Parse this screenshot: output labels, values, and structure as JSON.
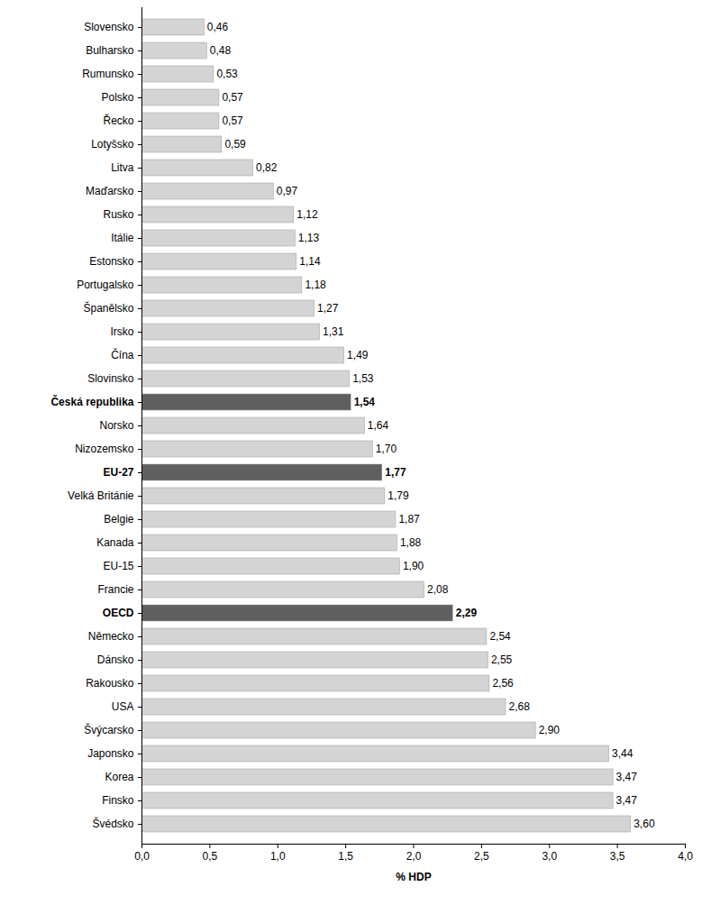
{
  "chart_data": {
    "type": "bar",
    "orientation": "horizontal",
    "xlabel": "% HDP",
    "categories": [
      "Slovensko",
      "Bulharsko",
      "Rumunsko",
      "Polsko",
      "Řecko",
      "Lotyšsko",
      "Litva",
      "Maďarsko",
      "Rusko",
      "Itálie",
      "Estonsko",
      "Portugalsko",
      "Španělsko",
      "Irsko",
      "Čína",
      "Slovinsko",
      "Česká republika",
      "Norsko",
      "Nizozemsko",
      "EU-27",
      "Velká Británie",
      "Belgie",
      "Kanada",
      "EU-15",
      "Francie",
      "OECD",
      "Německo",
      "Dánsko",
      "Rakousko",
      "USA",
      "Švýcarsko",
      "Japonsko",
      "Korea",
      "Finsko",
      "Švédsko"
    ],
    "values": [
      0.46,
      0.48,
      0.53,
      0.57,
      0.57,
      0.59,
      0.82,
      0.97,
      1.12,
      1.13,
      1.14,
      1.18,
      1.27,
      1.31,
      1.49,
      1.53,
      1.54,
      1.64,
      1.7,
      1.77,
      1.79,
      1.87,
      1.88,
      1.9,
      2.08,
      2.29,
      2.54,
      2.55,
      2.56,
      2.68,
      2.9,
      3.44,
      3.47,
      3.47,
      3.6
    ],
    "value_labels": [
      "0,46",
      "0,48",
      "0,53",
      "0,57",
      "0,57",
      "0,59",
      "0,82",
      "0,97",
      "1,12",
      "1,13",
      "1,14",
      "1,18",
      "1,27",
      "1,31",
      "1,49",
      "1,53",
      "1,54",
      "1,64",
      "1,70",
      "1,77",
      "1,79",
      "1,87",
      "1,88",
      "1,90",
      "2,08",
      "2,29",
      "2,54",
      "2,55",
      "2,56",
      "2,68",
      "2,90",
      "3,44",
      "3,47",
      "3,47",
      "3,60"
    ],
    "colors": [
      "#d4d4d4",
      "#d4d4d4",
      "#d4d4d4",
      "#d4d4d4",
      "#d4d4d4",
      "#d4d4d4",
      "#d4d4d4",
      "#d4d4d4",
      "#d4d4d4",
      "#d4d4d4",
      "#d4d4d4",
      "#d4d4d4",
      "#d4d4d4",
      "#d4d4d4",
      "#d4d4d4",
      "#d4d4d4",
      "#5f5f5f",
      "#d4d4d4",
      "#d4d4d4",
      "#5f5f5f",
      "#d4d4d4",
      "#d4d4d4",
      "#d4d4d4",
      "#d4d4d4",
      "#d4d4d4",
      "#5f5f5f",
      "#d4d4d4",
      "#d4d4d4",
      "#d4d4d4",
      "#d4d4d4",
      "#d4d4d4",
      "#d4d4d4",
      "#d4d4d4",
      "#d4d4d4",
      "#d4d4d4"
    ],
    "xlim": [
      0,
      4
    ],
    "xticks": [
      {
        "value": 0,
        "label": "0,0"
      },
      {
        "value": 0.5,
        "label": "0,5"
      },
      {
        "value": 1,
        "label": "1,0"
      },
      {
        "value": 1.5,
        "label": "1,5"
      },
      {
        "value": 2,
        "label": "2,0"
      },
      {
        "value": 2.5,
        "label": "2,5"
      },
      {
        "value": 3,
        "label": "3,0"
      },
      {
        "value": 3.5,
        "label": "3,5"
      },
      {
        "value": 4,
        "label": "4,0"
      }
    ],
    "grid": false,
    "data_labels": true
  }
}
